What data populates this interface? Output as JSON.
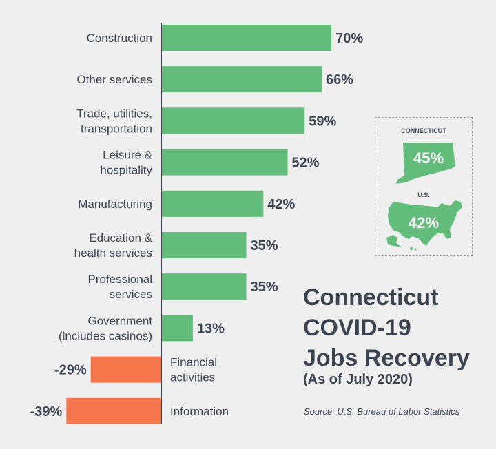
{
  "chart_data": {
    "type": "bar",
    "orientation": "horizontal",
    "categories": [
      [
        "Construction"
      ],
      [
        "Other services"
      ],
      [
        "Trade, utilities,",
        "transportation"
      ],
      [
        "Leisure &",
        "hospitality"
      ],
      [
        "Manufacturing"
      ],
      [
        "Education &",
        "health services"
      ],
      [
        "Professional",
        "services"
      ],
      [
        "Government",
        "(includes casinos)"
      ],
      [
        "Financial",
        "activities"
      ],
      [
        "Information"
      ]
    ],
    "values": [
      70,
      66,
      59,
      52,
      42,
      35,
      35,
      13,
      -29,
      -39
    ],
    "value_labels": [
      "70%",
      "66%",
      "59%",
      "52%",
      "42%",
      "35%",
      "35%",
      "13%",
      "-29%",
      "-39%"
    ],
    "positive_color": "#62bd7a",
    "negative_color": "#f5774b",
    "xlim": [
      -39,
      70
    ]
  },
  "title_lines": [
    "Connecticut",
    "COVID-19",
    "Jobs Recovery"
  ],
  "subtitle": "(As of July 2020)",
  "source": "Source: U.S. Bureau of Labor Statistics",
  "inset": {
    "connecticut": {
      "label": "CONNECTICUT",
      "value": "45%"
    },
    "us": {
      "label": "U.S.",
      "value": "42%"
    },
    "map_color": "#62bd7a"
  }
}
